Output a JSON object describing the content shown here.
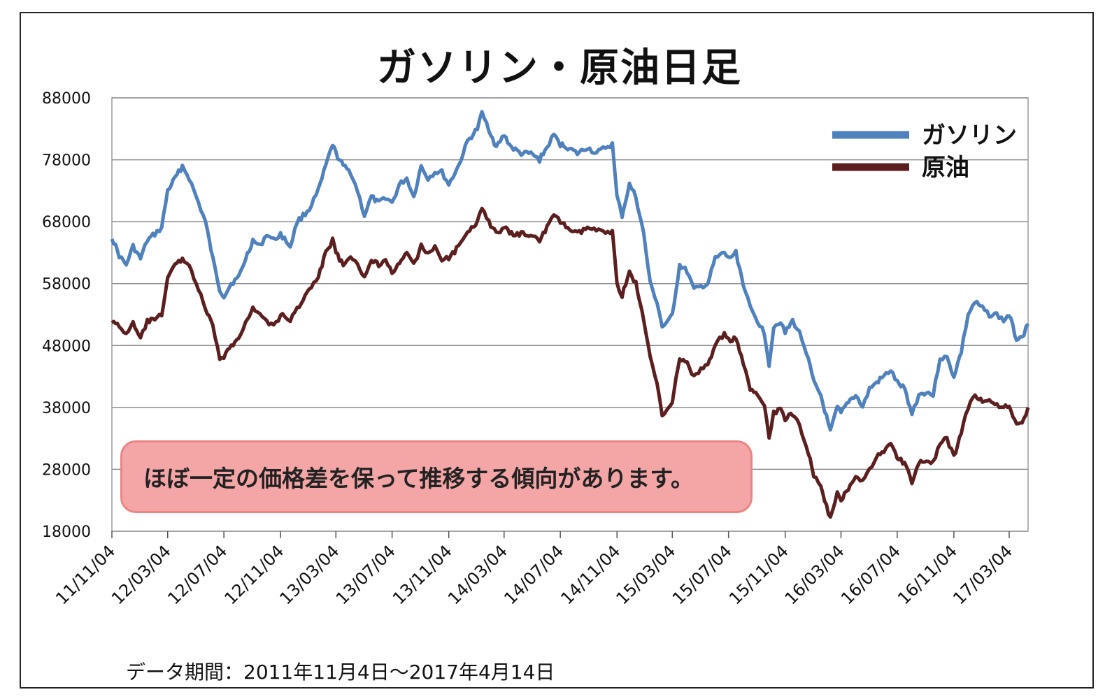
{
  "chart_data": {
    "type": "line",
    "title": "ガソリン・原油日足",
    "ylim": [
      18000,
      88000
    ],
    "yticks": [
      88000,
      78000,
      68000,
      58000,
      48000,
      38000,
      28000,
      18000
    ],
    "x_tick_labels": [
      "11/11/04",
      "12/03/04",
      "12/07/04",
      "12/11/04",
      "13/03/04",
      "13/07/04",
      "13/11/04",
      "14/03/04",
      "14/07/04",
      "14/11/04",
      "15/03/04",
      "15/07/04",
      "15/11/04",
      "16/03/04",
      "16/07/04",
      "16/11/04",
      "17/03/04"
    ],
    "x_range": [
      "2011-11-04",
      "2017-04-14"
    ],
    "grid": "horizontal",
    "legend_position": "top-right",
    "series": [
      {
        "name": "ガソリン",
        "color": "#4f81bd",
        "points": [
          [
            "2011-11-04",
            65500
          ],
          [
            "2011-11-20",
            62500
          ],
          [
            "2011-12-05",
            61000
          ],
          [
            "2011-12-20",
            64000
          ],
          [
            "2012-01-05",
            62000
          ],
          [
            "2012-01-20",
            65000
          ],
          [
            "2012-02-05",
            66000
          ],
          [
            "2012-02-20",
            67000
          ],
          [
            "2012-03-04",
            73000
          ],
          [
            "2012-03-20",
            75000
          ],
          [
            "2012-04-05",
            77000
          ],
          [
            "2012-04-20",
            75000
          ],
          [
            "2012-05-05",
            72000
          ],
          [
            "2012-05-25",
            68000
          ],
          [
            "2012-06-10",
            62000
          ],
          [
            "2012-06-25",
            57000
          ],
          [
            "2012-07-04",
            56000
          ],
          [
            "2012-07-20",
            58000
          ],
          [
            "2012-08-05",
            59000
          ],
          [
            "2012-08-20",
            62000
          ],
          [
            "2012-09-05",
            65000
          ],
          [
            "2012-09-20",
            64000
          ],
          [
            "2012-10-05",
            66000
          ],
          [
            "2012-10-20",
            65000
          ],
          [
            "2012-11-04",
            66000
          ],
          [
            "2012-11-25",
            64000
          ],
          [
            "2012-12-10",
            68000
          ],
          [
            "2013-01-05",
            70000
          ],
          [
            "2013-01-25",
            73000
          ],
          [
            "2013-02-10",
            77000
          ],
          [
            "2013-02-25",
            80500
          ],
          [
            "2013-03-04",
            79000
          ],
          [
            "2013-03-20",
            77000
          ],
          [
            "2013-04-05",
            76000
          ],
          [
            "2013-04-20",
            73000
          ],
          [
            "2013-05-05",
            69000
          ],
          [
            "2013-05-20",
            72000
          ],
          [
            "2013-06-05",
            71000
          ],
          [
            "2013-06-20",
            72000
          ],
          [
            "2013-07-04",
            71000
          ],
          [
            "2013-07-20",
            74000
          ],
          [
            "2013-08-05",
            75000
          ],
          [
            "2013-08-20",
            72000
          ],
          [
            "2013-09-05",
            77000
          ],
          [
            "2013-09-20",
            75000
          ],
          [
            "2013-10-05",
            76000
          ],
          [
            "2013-10-20",
            76000
          ],
          [
            "2013-11-04",
            74000
          ],
          [
            "2013-11-25",
            77000
          ],
          [
            "2013-12-15",
            81000
          ],
          [
            "2014-01-05",
            83000
          ],
          [
            "2014-01-15",
            85500
          ],
          [
            "2014-01-30",
            83000
          ],
          [
            "2014-02-15",
            80000
          ],
          [
            "2014-03-04",
            82000
          ],
          [
            "2014-03-20",
            80000
          ],
          [
            "2014-04-10",
            79000
          ],
          [
            "2014-05-01",
            79000
          ],
          [
            "2014-05-20",
            78000
          ],
          [
            "2014-06-05",
            80000
          ],
          [
            "2014-06-20",
            82000
          ],
          [
            "2014-07-04",
            80500
          ],
          [
            "2014-07-20",
            80000
          ],
          [
            "2014-08-10",
            79000
          ],
          [
            "2014-09-01",
            80000
          ],
          [
            "2014-09-20",
            79000
          ],
          [
            "2014-10-10",
            80000
          ],
          [
            "2014-10-25",
            80500
          ],
          [
            "2014-11-04",
            72000
          ],
          [
            "2014-11-15",
            69000
          ],
          [
            "2014-12-01",
            74000
          ],
          [
            "2014-12-15",
            72000
          ],
          [
            "2015-01-01",
            66000
          ],
          [
            "2015-01-15",
            58000
          ],
          [
            "2015-01-30",
            55000
          ],
          [
            "2015-02-10",
            51000
          ],
          [
            "2015-02-25",
            52000
          ],
          [
            "2015-03-04",
            53000
          ],
          [
            "2015-03-20",
            61000
          ],
          [
            "2015-04-05",
            60000
          ],
          [
            "2015-04-20",
            57000
          ],
          [
            "2015-05-05",
            57500
          ],
          [
            "2015-05-20",
            58000
          ],
          [
            "2015-06-05",
            62000
          ],
          [
            "2015-06-25",
            63000
          ],
          [
            "2015-07-04",
            62000
          ],
          [
            "2015-07-20",
            63000
          ],
          [
            "2015-08-05",
            58000
          ],
          [
            "2015-08-20",
            54000
          ],
          [
            "2015-09-05",
            52000
          ],
          [
            "2015-09-20",
            50000
          ],
          [
            "2015-09-30",
            45000
          ],
          [
            "2015-10-10",
            51000
          ],
          [
            "2015-10-25",
            52000
          ],
          [
            "2015-11-04",
            50000
          ],
          [
            "2015-11-20",
            52000
          ],
          [
            "2015-12-05",
            50000
          ],
          [
            "2015-12-20",
            47000
          ],
          [
            "2016-01-05",
            42000
          ],
          [
            "2016-01-20",
            40000
          ],
          [
            "2016-02-10",
            34000
          ],
          [
            "2016-02-25",
            38000
          ],
          [
            "2016-03-04",
            37000
          ],
          [
            "2016-03-20",
            39000
          ],
          [
            "2016-04-05",
            40000
          ],
          [
            "2016-04-20",
            38000
          ],
          [
            "2016-05-05",
            41000
          ],
          [
            "2016-05-20",
            42000
          ],
          [
            "2016-06-05",
            43000
          ],
          [
            "2016-06-20",
            44000
          ],
          [
            "2016-07-04",
            42000
          ],
          [
            "2016-07-20",
            41000
          ],
          [
            "2016-08-05",
            37000
          ],
          [
            "2016-08-20",
            40000
          ],
          [
            "2016-09-05",
            40500
          ],
          [
            "2016-09-20",
            40000
          ],
          [
            "2016-10-05",
            46000
          ],
          [
            "2016-10-20",
            46000
          ],
          [
            "2016-11-04",
            43000
          ],
          [
            "2016-11-20",
            47000
          ],
          [
            "2016-12-05",
            53000
          ],
          [
            "2016-12-20",
            55000
          ],
          [
            "2017-01-05",
            54000
          ],
          [
            "2017-01-20",
            53000
          ],
          [
            "2017-02-05",
            53000
          ],
          [
            "2017-02-20",
            52000
          ],
          [
            "2017-03-04",
            53000
          ],
          [
            "2017-03-20",
            49000
          ],
          [
            "2017-04-05",
            50000
          ],
          [
            "2017-04-14",
            51500
          ]
        ]
      },
      {
        "name": "原油",
        "color": "#5c1f1f",
        "points": [
          [
            "2011-11-04",
            52000
          ],
          [
            "2011-11-20",
            51000
          ],
          [
            "2011-12-05",
            50000
          ],
          [
            "2011-12-20",
            51500
          ],
          [
            "2012-01-05",
            49000
          ],
          [
            "2012-01-20",
            52000
          ],
          [
            "2012-02-05",
            52000
          ],
          [
            "2012-02-20",
            53000
          ],
          [
            "2012-03-04",
            59000
          ],
          [
            "2012-03-20",
            61000
          ],
          [
            "2012-04-05",
            62000
          ],
          [
            "2012-04-20",
            61000
          ],
          [
            "2012-05-05",
            58000
          ],
          [
            "2012-05-25",
            54000
          ],
          [
            "2012-06-10",
            51000
          ],
          [
            "2012-06-25",
            46000
          ],
          [
            "2012-07-04",
            46000
          ],
          [
            "2012-07-20",
            48000
          ],
          [
            "2012-08-05",
            49000
          ],
          [
            "2012-08-20",
            52000
          ],
          [
            "2012-09-05",
            54000
          ],
          [
            "2012-09-20",
            53000
          ],
          [
            "2012-10-05",
            52000
          ],
          [
            "2012-10-20",
            51000
          ],
          [
            "2012-11-04",
            53000
          ],
          [
            "2012-11-25",
            52000
          ],
          [
            "2012-12-10",
            54000
          ],
          [
            "2013-01-05",
            57000
          ],
          [
            "2013-01-25",
            59000
          ],
          [
            "2013-02-10",
            63000
          ],
          [
            "2013-02-25",
            65000
          ],
          [
            "2013-03-04",
            63000
          ],
          [
            "2013-03-20",
            61000
          ],
          [
            "2013-04-05",
            62000
          ],
          [
            "2013-04-20",
            61000
          ],
          [
            "2013-05-05",
            59000
          ],
          [
            "2013-05-20",
            62000
          ],
          [
            "2013-06-05",
            61000
          ],
          [
            "2013-06-20",
            62000
          ],
          [
            "2013-07-04",
            60000
          ],
          [
            "2013-07-20",
            61000
          ],
          [
            "2013-08-05",
            63000
          ],
          [
            "2013-08-20",
            61000
          ],
          [
            "2013-09-05",
            64000
          ],
          [
            "2013-09-20",
            63000
          ],
          [
            "2013-10-05",
            64000
          ],
          [
            "2013-10-20",
            62000
          ],
          [
            "2013-11-04",
            62000
          ],
          [
            "2013-11-25",
            64000
          ],
          [
            "2013-12-15",
            66000
          ],
          [
            "2014-01-05",
            68000
          ],
          [
            "2014-01-15",
            70500
          ],
          [
            "2014-01-30",
            68000
          ],
          [
            "2014-02-15",
            66000
          ],
          [
            "2014-03-04",
            67000
          ],
          [
            "2014-03-20",
            66000
          ],
          [
            "2014-04-10",
            66000
          ],
          [
            "2014-05-01",
            66000
          ],
          [
            "2014-05-20",
            65000
          ],
          [
            "2014-06-05",
            67000
          ],
          [
            "2014-06-20",
            69000
          ],
          [
            "2014-07-04",
            68000
          ],
          [
            "2014-07-20",
            67000
          ],
          [
            "2014-08-10",
            66000
          ],
          [
            "2014-09-01",
            67000
          ],
          [
            "2014-09-20",
            66500
          ],
          [
            "2014-10-10",
            66500
          ],
          [
            "2014-10-25",
            66500
          ],
          [
            "2014-11-04",
            58000
          ],
          [
            "2014-11-15",
            56000
          ],
          [
            "2014-12-01",
            60000
          ],
          [
            "2014-12-15",
            58000
          ],
          [
            "2015-01-01",
            52000
          ],
          [
            "2015-01-15",
            46000
          ],
          [
            "2015-01-30",
            42000
          ],
          [
            "2015-02-10",
            37000
          ],
          [
            "2015-02-25",
            38000
          ],
          [
            "2015-03-04",
            39000
          ],
          [
            "2015-03-20",
            46000
          ],
          [
            "2015-04-05",
            45000
          ],
          [
            "2015-04-20",
            43000
          ],
          [
            "2015-05-05",
            44000
          ],
          [
            "2015-05-20",
            45000
          ],
          [
            "2015-06-05",
            48000
          ],
          [
            "2015-06-25",
            50000
          ],
          [
            "2015-07-04",
            49000
          ],
          [
            "2015-07-20",
            49000
          ],
          [
            "2015-08-05",
            45000
          ],
          [
            "2015-08-20",
            41000
          ],
          [
            "2015-09-05",
            40000
          ],
          [
            "2015-09-20",
            38000
          ],
          [
            "2015-09-30",
            33000
          ],
          [
            "2015-10-10",
            37000
          ],
          [
            "2015-10-25",
            38000
          ],
          [
            "2015-11-04",
            36000
          ],
          [
            "2015-11-20",
            37000
          ],
          [
            "2015-12-05",
            35000
          ],
          [
            "2015-12-20",
            32000
          ],
          [
            "2016-01-05",
            27000
          ],
          [
            "2016-01-20",
            25000
          ],
          [
            "2016-02-10",
            20000
          ],
          [
            "2016-02-25",
            24000
          ],
          [
            "2016-03-04",
            23000
          ],
          [
            "2016-03-20",
            25000
          ],
          [
            "2016-04-05",
            27000
          ],
          [
            "2016-04-20",
            26000
          ],
          [
            "2016-05-05",
            28000
          ],
          [
            "2016-05-20",
            30000
          ],
          [
            "2016-06-05",
            31000
          ],
          [
            "2016-06-20",
            32000
          ],
          [
            "2016-07-04",
            30000
          ],
          [
            "2016-07-20",
            29000
          ],
          [
            "2016-08-05",
            26000
          ],
          [
            "2016-08-20",
            29000
          ],
          [
            "2016-09-05",
            29500
          ],
          [
            "2016-09-20",
            29000
          ],
          [
            "2016-10-05",
            32000
          ],
          [
            "2016-10-20",
            33000
          ],
          [
            "2016-11-04",
            30000
          ],
          [
            "2016-11-20",
            34000
          ],
          [
            "2016-12-05",
            38000
          ],
          [
            "2016-12-20",
            40000
          ],
          [
            "2017-01-05",
            39000
          ],
          [
            "2017-01-20",
            39000
          ],
          [
            "2017-02-05",
            38500
          ],
          [
            "2017-02-20",
            38000
          ],
          [
            "2017-03-04",
            38000
          ],
          [
            "2017-03-20",
            35000
          ],
          [
            "2017-04-05",
            36000
          ],
          [
            "2017-04-14",
            38000
          ]
        ]
      }
    ]
  },
  "callout": "ほぼ一定の価格差を保って推移する傾向があります。",
  "footnote": "データ期間：2011年11月4日～2017年4月14日"
}
